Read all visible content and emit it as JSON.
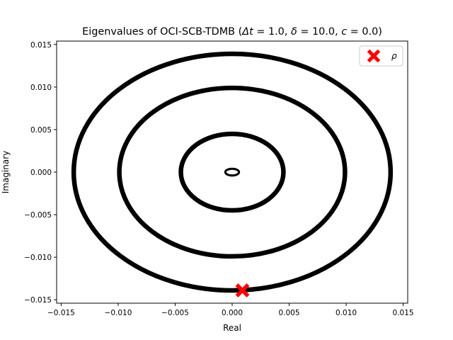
{
  "chart_data": {
    "type": "scatter",
    "title_prefix": "Eigenvalues of OCI-SCB-TDMB (",
    "title_parts": [
      {
        "sym": "Δt",
        "eq": " = 1.0"
      },
      {
        "sym": "δ",
        "eq": " = 10.0"
      },
      {
        "sym": "c",
        "eq": " = 0.0"
      }
    ],
    "title_suffix": ")",
    "xlabel": "Real",
    "ylabel": "Imaginary",
    "xlim": [
      -0.0154,
      0.0154
    ],
    "ylim": [
      -0.0154,
      0.0154
    ],
    "x_ticks": [
      -0.015,
      -0.01,
      -0.005,
      0.0,
      0.005,
      0.01,
      0.015
    ],
    "x_tick_labels": [
      "−0.015",
      "−0.010",
      "−0.005",
      "0.000",
      "0.005",
      "0.010",
      "0.015"
    ],
    "y_ticks": [
      -0.015,
      -0.01,
      -0.005,
      0.0,
      0.005,
      0.01,
      0.015
    ],
    "y_tick_labels": [
      "−0.015",
      "−0.010",
      "−0.005",
      "0.000",
      "0.005",
      "0.010",
      "0.015"
    ],
    "grid": false,
    "legend_position": "top-right",
    "series": [
      {
        "kind": "eigenvalue-ring",
        "center": [
          0.0,
          0.0
        ],
        "radius_real": 0.0139,
        "radius_imag": 0.0139,
        "color": "#000000"
      },
      {
        "kind": "eigenvalue-ring",
        "center": [
          0.0,
          0.0
        ],
        "radius_real": 0.0099,
        "radius_imag": 0.0099,
        "color": "#000000"
      },
      {
        "kind": "eigenvalue-ring",
        "center": [
          0.0,
          0.0
        ],
        "radius_real": 0.0045,
        "radius_imag": 0.0045,
        "color": "#000000"
      },
      {
        "kind": "eigenvalue-ring",
        "center": [
          0.0,
          0.0
        ],
        "radius_real": 0.0006,
        "radius_imag": 0.0004,
        "color": "#000000"
      }
    ],
    "markers": [
      {
        "name": "ρ",
        "x": 0.0009,
        "y": -0.0139,
        "marker": "X",
        "color": "#ff0000"
      }
    ]
  }
}
